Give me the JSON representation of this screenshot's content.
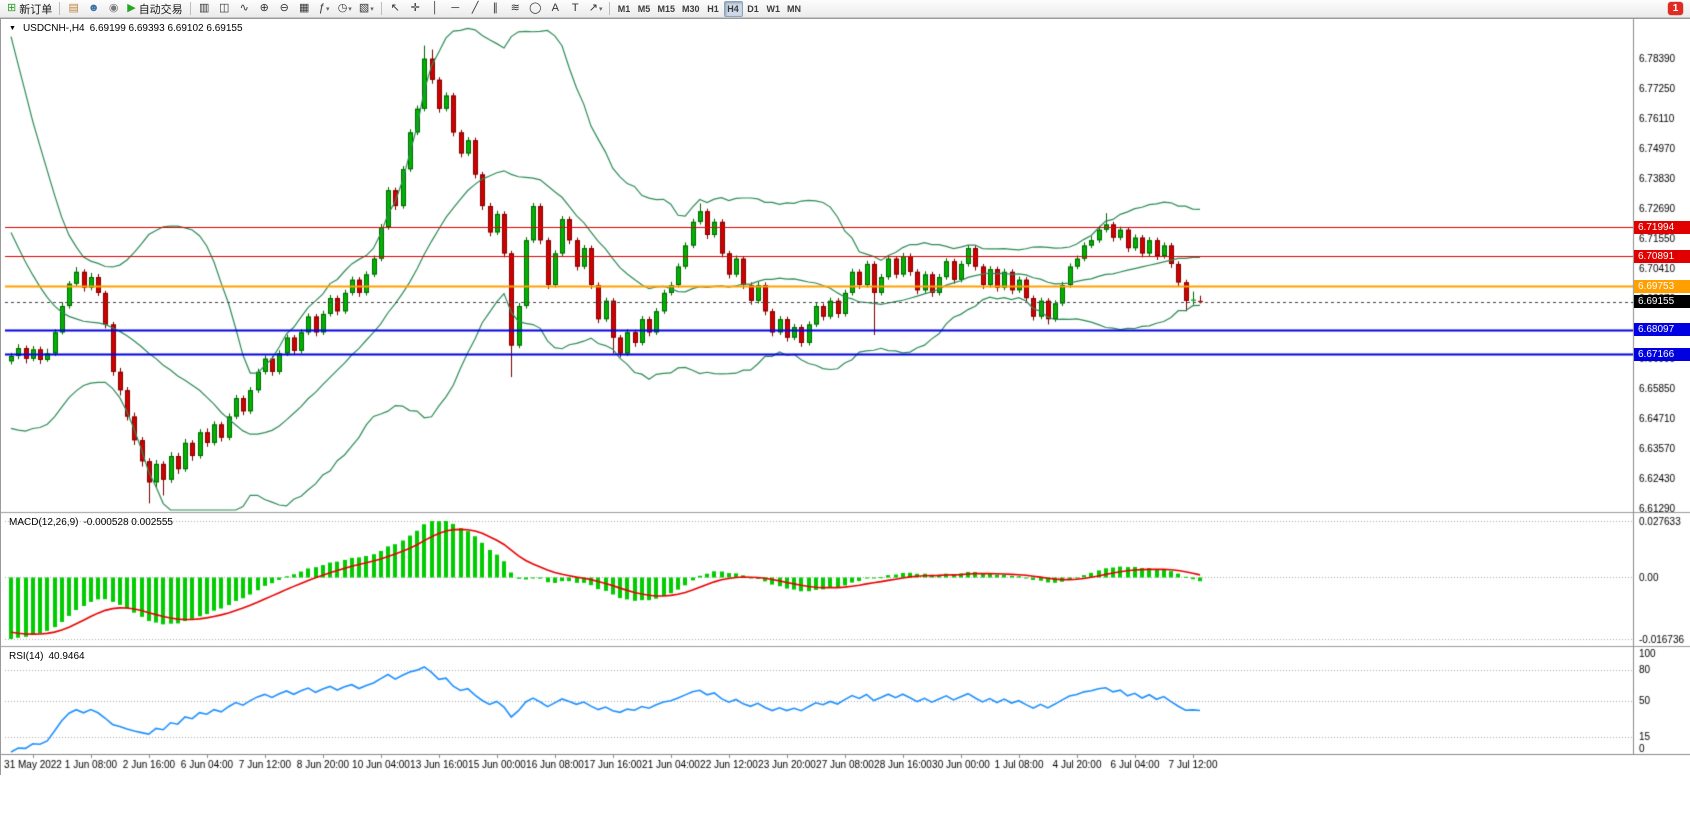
{
  "toolbar": {
    "notification_count": "1",
    "groups": [
      {
        "items": [
          {
            "name": "new-order-button",
            "glyph": "⊞",
            "glyph_color": "#2f9e2f",
            "label": "新订单"
          }
        ]
      },
      {
        "items": [
          {
            "name": "open-charts-button",
            "glyph": "▤",
            "glyph_color": "#b9823b"
          },
          {
            "name": "profile-button",
            "glyph": "☻",
            "glyph_color": "#3a6ea5"
          },
          {
            "name": "market-watch-button",
            "glyph": "◉",
            "glyph_color": "#7a7a7a"
          },
          {
            "name": "auto-trading-button",
            "glyph": "▶",
            "glyph_color": "#27a527",
            "label": "自动交易"
          }
        ]
      },
      {
        "items": [
          {
            "name": "bar-chart-button",
            "glyph": "▥"
          },
          {
            "name": "candlestick-chart-button",
            "glyph": "◫"
          },
          {
            "name": "line-chart-button",
            "glyph": "∿"
          },
          {
            "name": "zoom-in-button",
            "glyph": "⊕"
          },
          {
            "name": "zoom-out-button",
            "glyph": "⊖"
          },
          {
            "name": "tile-windows-button",
            "glyph": "▦"
          },
          {
            "name": "indicators-button",
            "glyph": "ƒ",
            "dropdown": true
          },
          {
            "name": "periods-button",
            "glyph": "◷",
            "dropdown": true
          },
          {
            "name": "templates-button",
            "glyph": "▧",
            "dropdown": true
          }
        ]
      },
      {
        "items": [
          {
            "name": "cursor-button",
            "glyph": "↖"
          },
          {
            "name": "crosshair-button",
            "glyph": "✛"
          },
          {
            "name": "vertical-line-button",
            "glyph": "│"
          },
          {
            "name": "horizontal-line-button",
            "glyph": "─"
          },
          {
            "name": "trendline-button",
            "glyph": "╱"
          },
          {
            "name": "channel-button",
            "glyph": "∥"
          },
          {
            "name": "fibonacci-button",
            "glyph": "≋"
          },
          {
            "name": "shapes-button",
            "glyph": "◯"
          },
          {
            "name": "text-button",
            "glyph": "A"
          },
          {
            "name": "label-button",
            "glyph": "T"
          },
          {
            "name": "arrows-button",
            "glyph": "↗",
            "dropdown": true
          }
        ]
      },
      {
        "items": [
          {
            "name": "timeframe-m1-button",
            "text": "M1"
          },
          {
            "name": "timeframe-m5-button",
            "text": "M5"
          },
          {
            "name": "timeframe-m15-button",
            "text": "M15"
          },
          {
            "name": "timeframe-m30-button",
            "text": "M30"
          },
          {
            "name": "timeframe-h1-button",
            "text": "H1"
          },
          {
            "name": "timeframe-h4-button",
            "text": "H4",
            "active": true
          },
          {
            "name": "timeframe-d1-button",
            "text": "D1"
          },
          {
            "name": "timeframe-w1-button",
            "text": "W1"
          },
          {
            "name": "timeframe-mn-button",
            "text": "MN"
          }
        ]
      }
    ]
  },
  "chart": {
    "collapse_glyph": "▼",
    "symbol_period": "USDCNH-,H4",
    "ohlc_values": "6.69199 6.69393 6.69102 6.69155"
  },
  "macd": {
    "label": "MACD(12,26,9)",
    "values": "-0.000528 0.002555",
    "axis": {
      "top": "0.027633",
      "zero": "0.00",
      "bottom": "-0.016736"
    }
  },
  "rsi": {
    "label": "RSI(14)",
    "value": "40.9464",
    "axis": [
      "100",
      "80",
      "50",
      "15",
      "0"
    ],
    "levels": [
      80,
      50,
      15
    ]
  },
  "chart_data": {
    "type": "candlestick",
    "symbol": "USDCNH-",
    "timeframe": "H4",
    "y_range": [
      6.6121,
      6.7991
    ],
    "y_ticks": [
      "6.78390",
      "6.77250",
      "6.76110",
      "6.74970",
      "6.73830",
      "6.72690",
      "6.71550",
      "6.70410",
      "6.69270",
      "6.68130",
      "6.66990",
      "6.65850",
      "6.64710",
      "6.63570",
      "6.62430",
      "6.61290"
    ],
    "x_labels": [
      "31 May 2022",
      "1 Jun 08:00",
      "2 Jun 16:00",
      "6 Jun 04:00",
      "7 Jun 12:00",
      "8 Jun 20:00",
      "10 Jun 04:00",
      "13 Jun 16:00",
      "15 Jun 00:00",
      "16 Jun 08:00",
      "17 Jun 16:00",
      "21 Jun 04:00",
      "22 Jun 12:00",
      "23 Jun 20:00",
      "27 Jun 08:00",
      "28 Jun 16:00",
      "30 Jun 00:00",
      "1 Jul 08:00",
      "4 Jul 20:00",
      "6 Jul 04:00",
      "7 Jul 12:00"
    ],
    "levels": [
      {
        "price": 6.71994,
        "label": "6.71994",
        "color": "#e00000",
        "width": 1
      },
      {
        "price": 6.70891,
        "label": "6.70891",
        "color": "#e00000",
        "width": 1
      },
      {
        "price": 6.69753,
        "label": "6.69753",
        "color": "#ffa000",
        "width": 2
      },
      {
        "price": 6.68097,
        "label": "6.68097",
        "color": "#0000e0",
        "width": 2
      },
      {
        "price": 6.67166,
        "label": "6.67166",
        "color": "#0000e0",
        "width": 2
      }
    ],
    "current_price": {
      "value": 6.69155,
      "label": "6.69155",
      "color": "#000000",
      "line_color": "#444444"
    },
    "bollinger": {
      "period": 20,
      "deviation": 2,
      "color": "#2e8b57"
    },
    "colors": {
      "up": "#00b400",
      "up_border": "#006400",
      "down": "#d40000",
      "down_border": "#7a0000",
      "macd_hist": "#00cc00",
      "macd_signal": "#e80000",
      "rsi_line": "#1e90ff"
    },
    "indicator_seed_closes": [
      6.795,
      6.788,
      6.78,
      6.772,
      6.76,
      6.752,
      6.745,
      6.738,
      6.73,
      6.722,
      6.715,
      6.708,
      6.7,
      6.695,
      6.69,
      6.686,
      6.682,
      6.678,
      6.675,
      6.672
    ],
    "candles": [
      [
        6.669,
        6.6722,
        6.6678,
        6.671
      ],
      [
        6.671,
        6.6755,
        6.6698,
        6.674
      ],
      [
        6.674,
        6.675,
        6.6682,
        6.67
      ],
      [
        6.67,
        6.6748,
        6.669,
        6.6735
      ],
      [
        6.6735,
        6.6746,
        6.668,
        6.6695
      ],
      [
        6.6695,
        6.6738,
        6.6688,
        6.672
      ],
      [
        6.672,
        6.6812,
        6.671,
        6.68
      ],
      [
        6.68,
        6.6915,
        6.6792,
        6.69
      ],
      [
        6.69,
        6.6995,
        6.689,
        6.6985
      ],
      [
        6.6985,
        6.7048,
        6.6975,
        6.703
      ],
      [
        6.703,
        6.704,
        6.6955,
        6.697
      ],
      [
        6.697,
        6.7026,
        6.696,
        6.701
      ],
      [
        6.701,
        6.7022,
        6.6938,
        6.695
      ],
      [
        6.695,
        6.6958,
        6.6815,
        6.683
      ],
      [
        6.683,
        6.684,
        6.6635,
        6.665
      ],
      [
        6.665,
        6.6665,
        6.656,
        6.658
      ],
      [
        6.658,
        6.6592,
        6.6465,
        6.648
      ],
      [
        6.648,
        6.6495,
        6.6372,
        6.639
      ],
      [
        6.639,
        6.6402,
        6.629,
        6.631
      ],
      [
        6.631,
        6.6322,
        6.615,
        6.623
      ],
      [
        6.623,
        6.6315,
        6.6212,
        6.63
      ],
      [
        6.63,
        6.631,
        6.618,
        6.624
      ],
      [
        6.624,
        6.6345,
        6.6228,
        6.633
      ],
      [
        6.633,
        6.6342,
        6.6262,
        6.628
      ],
      [
        6.628,
        6.6395,
        6.627,
        6.638
      ],
      [
        6.638,
        6.639,
        6.6312,
        6.633
      ],
      [
        6.633,
        6.6432,
        6.632,
        6.642
      ],
      [
        6.642,
        6.6435,
        6.6365,
        6.638
      ],
      [
        6.638,
        6.6462,
        6.637,
        6.645
      ],
      [
        6.645,
        6.646,
        6.6385,
        6.64
      ],
      [
        6.64,
        6.6492,
        6.639,
        6.648
      ],
      [
        6.648,
        6.6562,
        6.647,
        6.655
      ],
      [
        6.655,
        6.656,
        6.6485,
        6.65
      ],
      [
        6.65,
        6.6592,
        6.649,
        6.658
      ],
      [
        6.658,
        6.6662,
        6.657,
        6.665
      ],
      [
        6.665,
        6.6712,
        6.664,
        6.67
      ],
      [
        6.67,
        6.671,
        6.6635,
        6.665
      ],
      [
        6.665,
        6.6732,
        6.664,
        6.672
      ],
      [
        6.672,
        6.6792,
        6.671,
        6.678
      ],
      [
        6.678,
        6.679,
        6.6715,
        6.673
      ],
      [
        6.673,
        6.6812,
        6.672,
        6.68
      ],
      [
        6.68,
        6.6872,
        6.679,
        6.686
      ],
      [
        6.686,
        6.687,
        6.6785,
        6.68
      ],
      [
        6.68,
        6.6882,
        6.679,
        6.687
      ],
      [
        6.687,
        6.6942,
        6.686,
        6.693
      ],
      [
        6.693,
        6.694,
        6.6865,
        6.688
      ],
      [
        6.688,
        6.6962,
        6.687,
        6.695
      ],
      [
        6.695,
        6.7012,
        6.694,
        6.7
      ],
      [
        6.7,
        6.701,
        6.6935,
        6.695
      ],
      [
        6.695,
        6.7032,
        6.694,
        6.702
      ],
      [
        6.702,
        6.7092,
        6.701,
        6.708
      ],
      [
        6.708,
        6.7212,
        6.707,
        6.72
      ],
      [
        6.72,
        6.7352,
        6.719,
        6.734
      ],
      [
        6.734,
        6.735,
        6.7265,
        6.728
      ],
      [
        6.728,
        6.7432,
        6.727,
        6.742
      ],
      [
        6.742,
        6.7572,
        6.741,
        6.756
      ],
      [
        6.756,
        6.7662,
        6.755,
        6.765
      ],
      [
        6.765,
        6.789,
        6.764,
        6.784
      ],
      [
        6.784,
        6.7875,
        6.7745,
        6.776
      ],
      [
        6.776,
        6.777,
        6.7635,
        6.765
      ],
      [
        6.765,
        6.7712,
        6.764,
        6.77
      ],
      [
        6.77,
        6.771,
        6.7545,
        6.756
      ],
      [
        6.756,
        6.757,
        6.7465,
        6.748
      ],
      [
        6.748,
        6.7542,
        6.747,
        6.753
      ],
      [
        6.753,
        6.754,
        6.7385,
        6.74
      ],
      [
        6.74,
        6.741,
        6.7265,
        6.728
      ],
      [
        6.728,
        6.7292,
        6.7165,
        6.718
      ],
      [
        6.718,
        6.7262,
        6.717,
        6.725
      ],
      [
        6.725,
        6.726,
        6.7085,
        6.71
      ],
      [
        6.71,
        6.711,
        6.663,
        6.675
      ],
      [
        6.675,
        6.6912,
        6.674,
        6.69
      ],
      [
        6.69,
        6.7162,
        6.689,
        6.715
      ],
      [
        6.715,
        6.7292,
        6.714,
        6.728
      ],
      [
        6.728,
        6.729,
        6.7135,
        6.715
      ],
      [
        6.715,
        6.716,
        6.6965,
        6.698
      ],
      [
        6.698,
        6.7112,
        6.697,
        6.71
      ],
      [
        6.71,
        6.7242,
        6.709,
        6.723
      ],
      [
        6.723,
        6.724,
        6.7135,
        6.715
      ],
      [
        6.715,
        6.716,
        6.7035,
        6.705
      ],
      [
        6.705,
        6.7132,
        6.704,
        6.712
      ],
      [
        6.712,
        6.713,
        6.6965,
        6.698
      ],
      [
        6.698,
        6.699,
        6.6835,
        6.685
      ],
      [
        6.685,
        6.6932,
        6.684,
        6.692
      ],
      [
        6.692,
        6.693,
        6.672,
        6.678
      ],
      [
        6.678,
        6.679,
        6.6705,
        6.672
      ],
      [
        6.672,
        6.6812,
        6.671,
        6.68
      ],
      [
        6.68,
        6.681,
        6.6745,
        6.676
      ],
      [
        6.676,
        6.6862,
        6.675,
        6.685
      ],
      [
        6.685,
        6.686,
        6.6785,
        6.68
      ],
      [
        6.68,
        6.6892,
        6.679,
        6.688
      ],
      [
        6.688,
        6.6962,
        6.687,
        6.695
      ],
      [
        6.695,
        6.6992,
        6.694,
        6.698
      ],
      [
        6.698,
        6.7062,
        6.697,
        6.705
      ],
      [
        6.705,
        6.7142,
        6.704,
        6.713
      ],
      [
        6.713,
        6.7232,
        6.712,
        6.722
      ],
      [
        6.722,
        6.729,
        6.721,
        6.726
      ],
      [
        6.726,
        6.727,
        6.7155,
        6.717
      ],
      [
        6.717,
        6.7232,
        6.716,
        6.722
      ],
      [
        6.722,
        6.723,
        6.7085,
        6.71
      ],
      [
        6.71,
        6.711,
        6.7005,
        6.702
      ],
      [
        6.702,
        6.7092,
        6.701,
        6.708
      ],
      [
        6.708,
        6.709,
        6.6965,
        6.698
      ],
      [
        6.698,
        6.699,
        6.6905,
        6.692
      ],
      [
        6.692,
        6.6992,
        6.691,
        6.698
      ],
      [
        6.698,
        6.699,
        6.6865,
        6.688
      ],
      [
        6.688,
        6.689,
        6.6785,
        6.68
      ],
      [
        6.68,
        6.6862,
        6.679,
        6.685
      ],
      [
        6.685,
        6.686,
        6.6765,
        6.678
      ],
      [
        6.678,
        6.6832,
        6.677,
        6.682
      ],
      [
        6.682,
        6.683,
        6.6745,
        6.676
      ],
      [
        6.676,
        6.6842,
        6.675,
        6.683
      ],
      [
        6.683,
        6.6912,
        6.682,
        6.69
      ],
      [
        6.69,
        6.691,
        6.6845,
        6.686
      ],
      [
        6.686,
        6.6932,
        6.685,
        6.692
      ],
      [
        6.692,
        6.693,
        6.6855,
        6.687
      ],
      [
        6.687,
        6.6962,
        6.686,
        6.695
      ],
      [
        6.695,
        6.7042,
        6.694,
        6.703
      ],
      [
        6.703,
        6.704,
        6.6965,
        6.698
      ],
      [
        6.698,
        6.7072,
        6.697,
        6.706
      ],
      [
        6.706,
        6.707,
        6.679,
        6.695
      ],
      [
        6.695,
        6.7022,
        6.694,
        6.701
      ],
      [
        6.701,
        6.7092,
        6.7,
        6.708
      ],
      [
        6.708,
        6.709,
        6.7005,
        6.702
      ],
      [
        6.702,
        6.7102,
        6.701,
        6.709
      ],
      [
        6.709,
        6.71,
        6.7015,
        6.703
      ],
      [
        6.703,
        6.704,
        6.6945,
        6.696
      ],
      [
        6.696,
        6.7032,
        6.695,
        6.702
      ],
      [
        6.702,
        6.703,
        6.6935,
        6.695
      ],
      [
        6.695,
        6.7022,
        6.694,
        6.701
      ],
      [
        6.701,
        6.7082,
        6.7,
        6.707
      ],
      [
        6.707,
        6.708,
        6.6985,
        6.7
      ],
      [
        6.7,
        6.7072,
        6.699,
        6.706
      ],
      [
        6.706,
        6.7132,
        6.705,
        6.712
      ],
      [
        6.712,
        6.713,
        6.7035,
        6.705
      ],
      [
        6.705,
        6.706,
        6.6965,
        6.698
      ],
      [
        6.698,
        6.7052,
        6.697,
        6.704
      ],
      [
        6.704,
        6.705,
        6.6955,
        6.697
      ],
      [
        6.697,
        6.7042,
        6.696,
        6.703
      ],
      [
        6.703,
        6.704,
        6.6945,
        6.696
      ],
      [
        6.696,
        6.7012,
        6.695,
        6.7
      ],
      [
        6.7,
        6.701,
        6.6915,
        6.693
      ],
      [
        6.693,
        6.694,
        6.6845,
        6.686
      ],
      [
        6.686,
        6.6932,
        6.685,
        6.692
      ],
      [
        6.692,
        6.693,
        6.683,
        6.685
      ],
      [
        6.685,
        6.6922,
        6.684,
        6.691
      ],
      [
        6.691,
        6.6992,
        6.69,
        6.698
      ],
      [
        6.698,
        6.7062,
        6.697,
        6.705
      ],
      [
        6.705,
        6.7092,
        6.704,
        6.708
      ],
      [
        6.708,
        6.7142,
        6.707,
        6.713
      ],
      [
        6.713,
        6.7165,
        6.712,
        6.715
      ],
      [
        6.715,
        6.7205,
        6.714,
        6.719
      ],
      [
        6.719,
        6.7253,
        6.718,
        6.721
      ],
      [
        6.721,
        6.722,
        6.7145,
        6.716
      ],
      [
        6.716,
        6.7202,
        6.715,
        6.719
      ],
      [
        6.719,
        6.72,
        6.7105,
        6.712
      ],
      [
        6.712,
        6.7172,
        6.711,
        6.716
      ],
      [
        6.716,
        6.717,
        6.7085,
        6.71
      ],
      [
        6.71,
        6.7162,
        6.709,
        6.715
      ],
      [
        6.715,
        6.716,
        6.7075,
        6.709
      ],
      [
        6.709,
        6.7142,
        6.708,
        6.713
      ],
      [
        6.713,
        6.714,
        6.7045,
        6.706
      ],
      [
        6.706,
        6.707,
        6.6975,
        6.699
      ],
      [
        6.699,
        6.7,
        6.688,
        6.692
      ],
      [
        6.692,
        6.6955,
        6.6905,
        6.6925
      ],
      [
        6.69199,
        6.69393,
        6.69102,
        6.69155
      ]
    ]
  }
}
